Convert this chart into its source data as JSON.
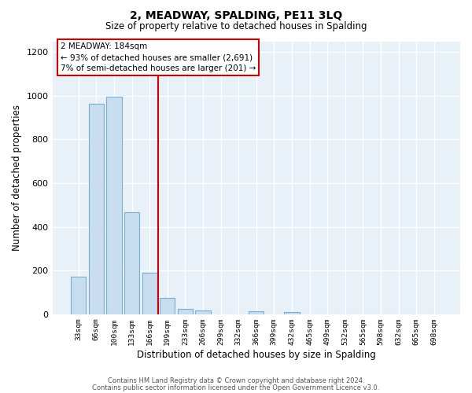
{
  "title": "2, MEADWAY, SPALDING, PE11 3LQ",
  "subtitle": "Size of property relative to detached houses in Spalding",
  "xlabel": "Distribution of detached houses by size in Spalding",
  "ylabel": "Number of detached properties",
  "bar_labels": [
    "33sqm",
    "66sqm",
    "100sqm",
    "133sqm",
    "166sqm",
    "199sqm",
    "233sqm",
    "266sqm",
    "299sqm",
    "332sqm",
    "366sqm",
    "399sqm",
    "432sqm",
    "465sqm",
    "499sqm",
    "532sqm",
    "565sqm",
    "598sqm",
    "632sqm",
    "665sqm",
    "698sqm"
  ],
  "bar_values": [
    170,
    965,
    995,
    465,
    190,
    75,
    25,
    15,
    0,
    0,
    12,
    0,
    10,
    0,
    0,
    0,
    0,
    0,
    0,
    0,
    0
  ],
  "bar_facecolor": "#c8ddf0",
  "bar_edgecolor": "#7aaed0",
  "plot_bg_color": "#e8f0f8",
  "vline_x_idx": 4.5,
  "vline_color": "#cc0000",
  "annotation_title": "2 MEADWAY: 184sqm",
  "annotation_line1": "← 93% of detached houses are smaller (2,691)",
  "annotation_line2": "7% of semi-detached houses are larger (201) →",
  "ylim": [
    0,
    1250
  ],
  "yticks": [
    0,
    200,
    400,
    600,
    800,
    1000,
    1200
  ],
  "footer1": "Contains HM Land Registry data © Crown copyright and database right 2024.",
  "footer2": "Contains public sector information licensed under the Open Government Licence v3.0."
}
